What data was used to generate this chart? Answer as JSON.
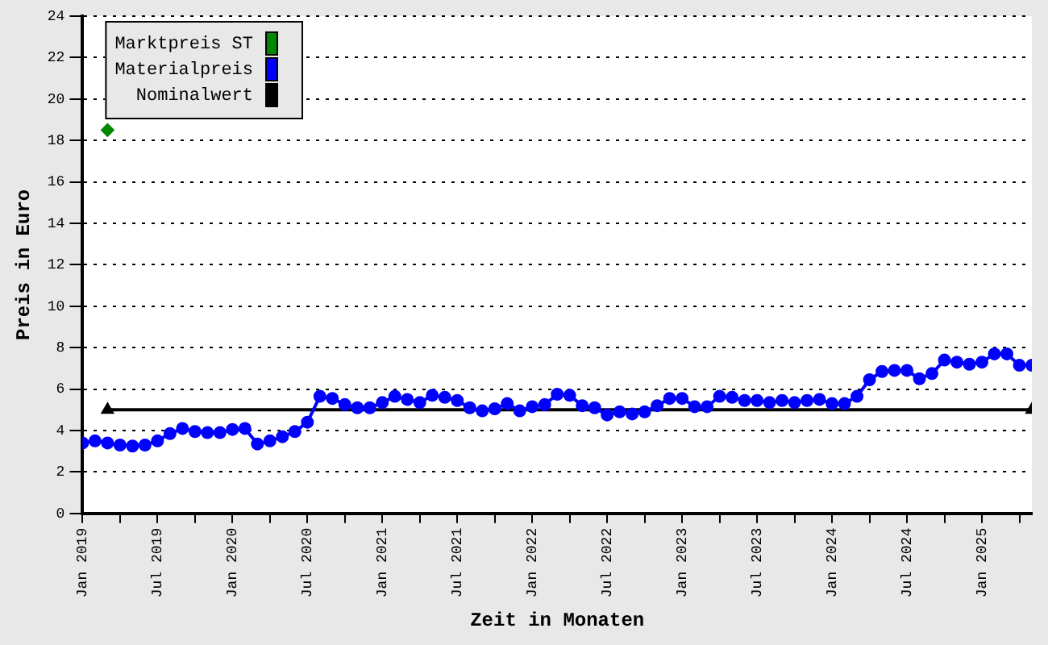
{
  "chart_data": {
    "type": "line",
    "xlabel": "Zeit in Monaten",
    "ylabel": "Preis in Euro",
    "xlim": [
      "2019-01",
      "2025-05"
    ],
    "xticks": [
      {
        "value": "2019-01",
        "label": "Jan 2019"
      },
      {
        "value": "2019-04",
        "label": null
      },
      {
        "value": "2019-07",
        "label": "Jul 2019"
      },
      {
        "value": "2019-10",
        "label": null
      },
      {
        "value": "2020-01",
        "label": "Jan 2020"
      },
      {
        "value": "2020-04",
        "label": null
      },
      {
        "value": "2020-07",
        "label": "Jul 2020"
      },
      {
        "value": "2020-10",
        "label": null
      },
      {
        "value": "2021-01",
        "label": "Jan 2021"
      },
      {
        "value": "2021-04",
        "label": null
      },
      {
        "value": "2021-07",
        "label": "Jul 2021"
      },
      {
        "value": "2021-10",
        "label": null
      },
      {
        "value": "2022-01",
        "label": "Jan 2022"
      },
      {
        "value": "2022-04",
        "label": null
      },
      {
        "value": "2022-07",
        "label": "Jul 2022"
      },
      {
        "value": "2022-10",
        "label": null
      },
      {
        "value": "2023-01",
        "label": "Jan 2023"
      },
      {
        "value": "2023-04",
        "label": null
      },
      {
        "value": "2023-07",
        "label": "Jul 2023"
      },
      {
        "value": "2023-10",
        "label": null
      },
      {
        "value": "2024-01",
        "label": "Jan 2024"
      },
      {
        "value": "2024-04",
        "label": null
      },
      {
        "value": "2024-07",
        "label": "Jul 2024"
      },
      {
        "value": "2024-10",
        "label": null
      },
      {
        "value": "2025-01",
        "label": "Jan 2025"
      },
      {
        "value": "2025-04",
        "label": null
      }
    ],
    "ylim": [
      0,
      24
    ],
    "yticks": [
      0,
      2,
      4,
      6,
      8,
      10,
      12,
      14,
      16,
      18,
      20,
      22,
      24
    ],
    "grid": "y",
    "legend": "top left",
    "x": [
      "2019-01",
      "2019-02",
      "2019-03",
      "2019-04",
      "2019-05",
      "2019-06",
      "2019-07",
      "2019-08",
      "2019-09",
      "2019-10",
      "2019-11",
      "2019-12",
      "2020-01",
      "2020-02",
      "2020-03",
      "2020-04",
      "2020-05",
      "2020-06",
      "2020-07",
      "2020-08",
      "2020-09",
      "2020-10",
      "2020-11",
      "2020-12",
      "2021-01",
      "2021-02",
      "2021-03",
      "2021-04",
      "2021-05",
      "2021-06",
      "2021-07",
      "2021-08",
      "2021-09",
      "2021-10",
      "2021-11",
      "2021-12",
      "2022-01",
      "2022-02",
      "2022-03",
      "2022-04",
      "2022-05",
      "2022-06",
      "2022-07",
      "2022-08",
      "2022-09",
      "2022-10",
      "2022-11",
      "2022-12",
      "2023-01",
      "2023-02",
      "2023-03",
      "2023-04",
      "2023-05",
      "2023-06",
      "2023-07",
      "2023-08",
      "2023-09",
      "2023-10",
      "2023-11",
      "2023-12",
      "2024-01",
      "2024-02",
      "2024-03",
      "2024-04",
      "2024-05",
      "2024-06",
      "2024-07",
      "2024-08",
      "2024-09",
      "2024-10",
      "2024-11",
      "2024-12",
      "2025-01",
      "2025-02",
      "2025-03",
      "2025-04",
      "2025-05"
    ],
    "series": [
      {
        "name": "Marktpreis ST",
        "color": "#008800",
        "type": "scatter",
        "marker": "diamond",
        "x": [
          "2019-03"
        ],
        "values": [
          18.5
        ]
      },
      {
        "name": "Materialpreis",
        "color": "#0000ff",
        "marker": "circle",
        "values": [
          3.4,
          3.5,
          3.4,
          3.3,
          3.25,
          3.3,
          3.5,
          3.85,
          4.1,
          3.95,
          3.9,
          3.9,
          4.05,
          4.1,
          3.35,
          3.5,
          3.7,
          3.95,
          4.4,
          5.65,
          5.55,
          5.25,
          5.1,
          5.1,
          5.35,
          5.65,
          5.5,
          5.35,
          5.7,
          5.6,
          5.45,
          5.1,
          4.95,
          5.05,
          5.3,
          4.95,
          5.15,
          5.25,
          5.75,
          5.7,
          5.2,
          5.1,
          4.75,
          4.9,
          4.8,
          4.9,
          5.2,
          5.55,
          5.55,
          5.15,
          5.15,
          5.65,
          5.6,
          5.45,
          5.45,
          5.35,
          5.45,
          5.35,
          5.45,
          5.5,
          5.3,
          5.3,
          5.65,
          6.45,
          6.85,
          6.9,
          6.9,
          6.5,
          6.75,
          7.4,
          7.3,
          7.2,
          7.3,
          7.7,
          7.7,
          7.15,
          7.15
        ]
      },
      {
        "name": "Nominalwert",
        "color": "#000000",
        "marker": "triangle",
        "x": [
          "2019-03",
          "2025-05"
        ],
        "values": [
          5,
          5
        ]
      }
    ]
  }
}
